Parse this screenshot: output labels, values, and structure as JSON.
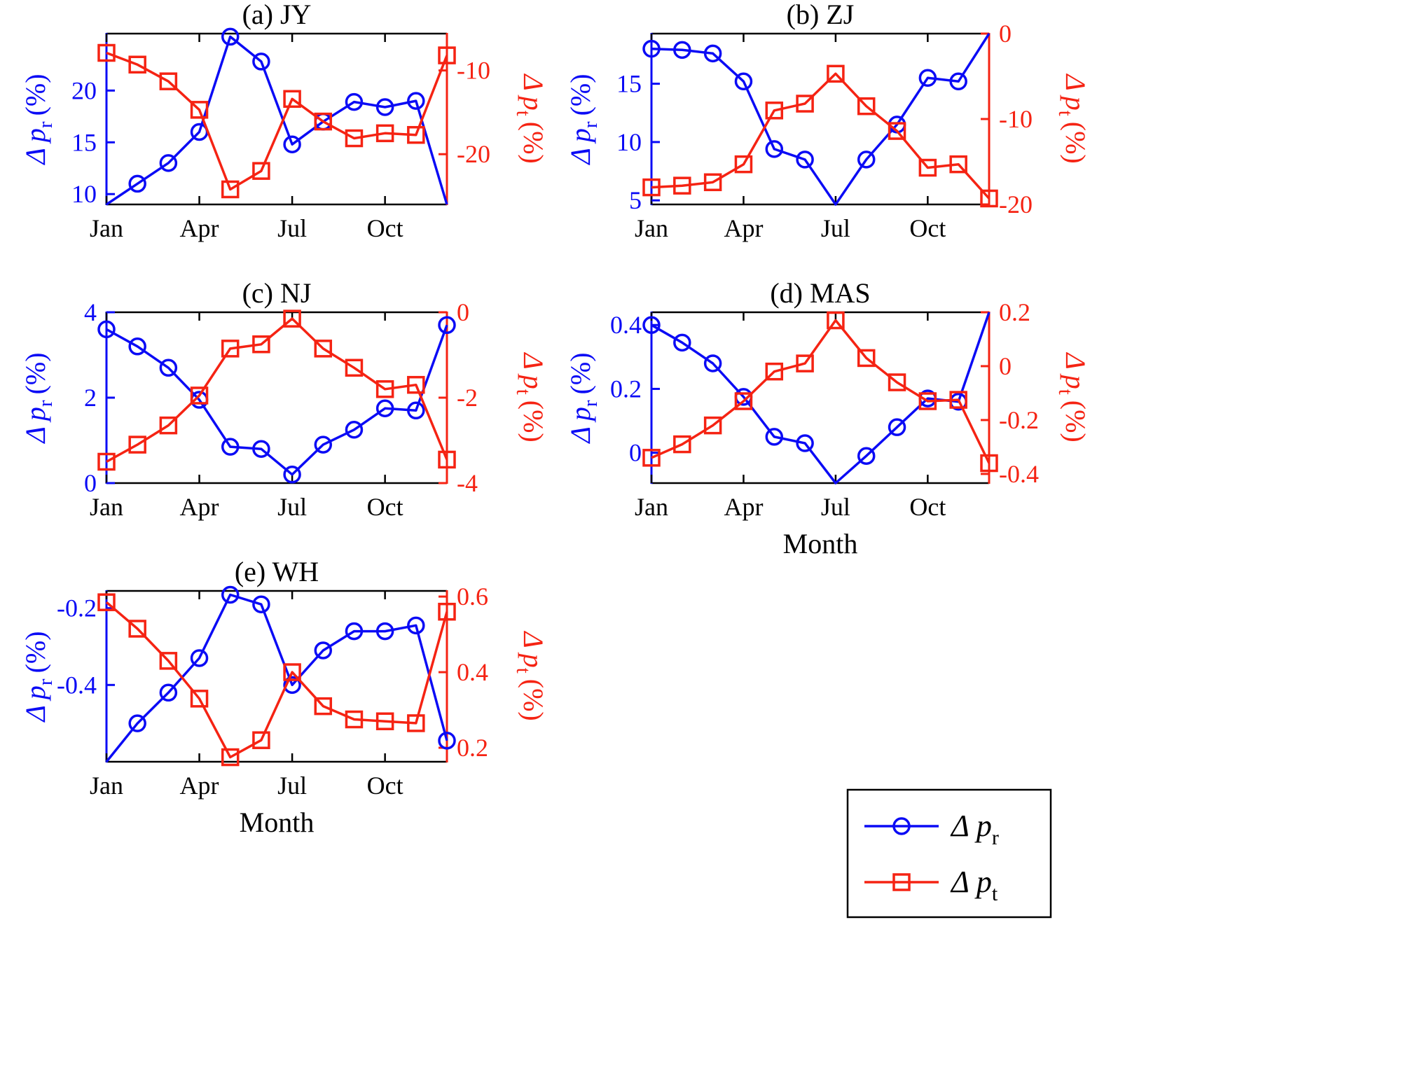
{
  "figure": {
    "background": "#ffffff",
    "colors": {
      "blue": "#0b0bf5",
      "red": "#f52313",
      "black": "#000000"
    },
    "months": [
      "Jan",
      "Feb",
      "Mar",
      "Apr",
      "May",
      "Jun",
      "Jul",
      "Aug",
      "Sep",
      "Oct",
      "Nov",
      "Dec"
    ],
    "x_tick_labels": [
      "Jan",
      "Apr",
      "Jul",
      "Oct"
    ],
    "x_tick_month_index": [
      0,
      3,
      6,
      9
    ],
    "legend": {
      "entries": [
        {
          "key": "dp_r",
          "marker": "circle",
          "color": "blue",
          "label": {
            "pre": "Δ",
            "var": "p",
            "sub": "r",
            "post": ""
          },
          "label_text": "Δ p_r"
        },
        {
          "key": "dp_t",
          "marker": "square",
          "color": "red",
          "label": {
            "pre": "Δ",
            "var": "p",
            "sub": "t",
            "post": ""
          },
          "label_text": "Δ p_t"
        }
      ]
    }
  },
  "chart_data": [
    {
      "id": "a",
      "type": "line",
      "title": "(a) JY",
      "xlabel": "",
      "categories": [
        "Jan",
        "Feb",
        "Mar",
        "Apr",
        "May",
        "Jun",
        "Jul",
        "Aug",
        "Sep",
        "Oct",
        "Nov",
        "Dec"
      ],
      "left_axis": {
        "label_text": "Δ p_r (%)",
        "label": {
          "pre": "Δ",
          "var": "p",
          "sub": "r",
          "post": "(%)"
        },
        "color": "blue",
        "ticks": [
          10,
          15,
          20
        ],
        "range": [
          9.0,
          25.5
        ]
      },
      "right_axis": {
        "label_text": "Δ p_t (%)",
        "label": {
          "pre": "Δ",
          "var": "p",
          "sub": "t",
          "post": "(%)"
        },
        "color": "red",
        "ticks": [
          -10,
          -20
        ],
        "range": [
          -26.0,
          -5.6
        ]
      },
      "series": [
        {
          "key": "dp_r",
          "name": "Δ p_r",
          "axis": "left",
          "color": "blue",
          "marker": "circle",
          "values": [
            9.0,
            11.0,
            13.0,
            16.0,
            25.2,
            22.8,
            14.8,
            17.0,
            18.9,
            18.4,
            19.0,
            9.0
          ]
        },
        {
          "key": "dp_t",
          "name": "Δ p_t",
          "axis": "right",
          "color": "red",
          "marker": "square",
          "values": [
            -7.9,
            -9.3,
            -11.3,
            -14.7,
            -24.2,
            -22.0,
            -13.4,
            -16.1,
            -18.1,
            -17.5,
            -17.7,
            -8.2
          ]
        }
      ]
    },
    {
      "id": "b",
      "type": "line",
      "title": "(b) ZJ",
      "xlabel": "",
      "categories": [
        "Jan",
        "Feb",
        "Mar",
        "Apr",
        "May",
        "Jun",
        "Jul",
        "Aug",
        "Sep",
        "Oct",
        "Nov",
        "Dec"
      ],
      "left_axis": {
        "label_text": "Δ p_r (%)",
        "label": {
          "pre": "Δ",
          "var": "p",
          "sub": "r",
          "post": "(%)"
        },
        "color": "blue",
        "ticks": [
          5,
          10,
          15
        ],
        "range": [
          4.65,
          19.3
        ]
      },
      "right_axis": {
        "label_text": "Δ p_t (%)",
        "label": {
          "pre": "Δ",
          "var": "p",
          "sub": "t",
          "post": "(%)"
        },
        "color": "red",
        "ticks": [
          0,
          -10,
          -20
        ],
        "range": [
          -20,
          0
        ]
      },
      "series": [
        {
          "key": "dp_r",
          "name": "Δ p_r",
          "axis": "left",
          "color": "blue",
          "marker": "circle",
          "values": [
            18.0,
            17.9,
            17.6,
            15.2,
            9.4,
            8.5,
            4.65,
            8.5,
            11.5,
            15.5,
            15.2,
            19.3
          ]
        },
        {
          "key": "dp_t",
          "name": "Δ p_t",
          "axis": "right",
          "color": "red",
          "marker": "square",
          "values": [
            -18.0,
            -17.8,
            -17.4,
            -15.3,
            -9.0,
            -8.2,
            -4.7,
            -8.5,
            -11.4,
            -15.7,
            -15.3,
            -19.3
          ]
        }
      ]
    },
    {
      "id": "c",
      "type": "line",
      "title": "(c) NJ",
      "xlabel": "",
      "categories": [
        "Jan",
        "Feb",
        "Mar",
        "Apr",
        "May",
        "Jun",
        "Jul",
        "Aug",
        "Sep",
        "Oct",
        "Nov",
        "Dec"
      ],
      "left_axis": {
        "label_text": "Δ p_r (%)",
        "label": {
          "pre": "Δ",
          "var": "p",
          "sub": "r",
          "post": "(%)"
        },
        "color": "blue",
        "ticks": [
          0,
          2,
          4
        ],
        "range": [
          0,
          4
        ]
      },
      "right_axis": {
        "label_text": "Δ p_t (%)",
        "label": {
          "pre": "Δ",
          "var": "p",
          "sub": "t",
          "post": "(%)"
        },
        "color": "red",
        "ticks": [
          0,
          -2,
          -4
        ],
        "range": [
          -4,
          0
        ]
      },
      "series": [
        {
          "key": "dp_r",
          "name": "Δ p_r",
          "axis": "left",
          "color": "blue",
          "marker": "circle",
          "values": [
            3.6,
            3.2,
            2.7,
            1.95,
            0.85,
            0.8,
            0.2,
            0.9,
            1.25,
            1.75,
            1.7,
            3.7
          ]
        },
        {
          "key": "dp_t",
          "name": "Δ p_t",
          "axis": "right",
          "color": "red",
          "marker": "square",
          "values": [
            -3.5,
            -3.1,
            -2.65,
            -1.95,
            -0.85,
            -0.75,
            -0.15,
            -0.85,
            -1.3,
            -1.8,
            -1.7,
            -3.45
          ]
        }
      ]
    },
    {
      "id": "d",
      "type": "line",
      "title": "(d) MAS",
      "xlabel": "Month",
      "categories": [
        "Jan",
        "Feb",
        "Mar",
        "Apr",
        "May",
        "Jun",
        "Jul",
        "Aug",
        "Sep",
        "Oct",
        "Nov",
        "Dec"
      ],
      "left_axis": {
        "label_text": "Δ p_r (%)",
        "label": {
          "pre": "Δ",
          "var": "p",
          "sub": "r",
          "post": "(%)"
        },
        "color": "blue",
        "ticks": [
          0,
          0.2,
          0.4
        ],
        "range": [
          -0.095,
          0.44
        ]
      },
      "right_axis": {
        "label_text": "Δ p_t (%)",
        "label": {
          "pre": "Δ",
          "var": "p",
          "sub": "t",
          "post": "(%)"
        },
        "color": "red",
        "ticks": [
          0.2,
          0,
          -0.2,
          -0.4
        ],
        "range": [
          -0.434,
          0.2
        ]
      },
      "series": [
        {
          "key": "dp_r",
          "name": "Δ p_r",
          "axis": "left",
          "color": "blue",
          "marker": "circle",
          "values": [
            0.4,
            0.345,
            0.28,
            0.175,
            0.05,
            0.03,
            -0.095,
            -0.01,
            0.08,
            0.17,
            0.16,
            0.44
          ]
        },
        {
          "key": "dp_t",
          "name": "Δ p_t",
          "axis": "right",
          "color": "red",
          "marker": "square",
          "values": [
            -0.34,
            -0.29,
            -0.22,
            -0.13,
            -0.02,
            0.01,
            0.17,
            0.03,
            -0.06,
            -0.13,
            -0.125,
            -0.36
          ]
        }
      ]
    },
    {
      "id": "e",
      "type": "line",
      "title": "(e) WH",
      "xlabel": "Month",
      "categories": [
        "Jan",
        "Feb",
        "Mar",
        "Apr",
        "May",
        "Jun",
        "Jul",
        "Aug",
        "Sep",
        "Oct",
        "Nov",
        "Dec"
      ],
      "left_axis": {
        "label_text": "Δ p_r (%)",
        "label": {
          "pre": "Δ",
          "var": "p",
          "sub": "r",
          "post": "(%)"
        },
        "color": "blue",
        "ticks": [
          -0.2,
          -0.4
        ],
        "range": [
          -0.6,
          -0.155
        ]
      },
      "right_axis": {
        "label_text": "Δ p_t (%)",
        "label": {
          "pre": "Δ",
          "var": "p",
          "sub": "t",
          "post": "(%)"
        },
        "color": "red",
        "ticks": [
          0.6,
          0.4,
          0.2
        ],
        "range": [
          0.163,
          0.615
        ]
      },
      "series": [
        {
          "key": "dp_r",
          "name": "Δ p_r",
          "axis": "left",
          "color": "blue",
          "marker": "circle",
          "values": [
            -0.6,
            -0.5,
            -0.42,
            -0.33,
            -0.165,
            -0.19,
            -0.4,
            -0.31,
            -0.26,
            -0.26,
            -0.245,
            -0.545
          ]
        },
        {
          "key": "dp_t",
          "name": "Δ p_t",
          "axis": "right",
          "color": "red",
          "marker": "square",
          "values": [
            0.585,
            0.515,
            0.43,
            0.33,
            0.175,
            0.22,
            0.4,
            0.31,
            0.275,
            0.27,
            0.265,
            0.56
          ]
        }
      ]
    }
  ]
}
